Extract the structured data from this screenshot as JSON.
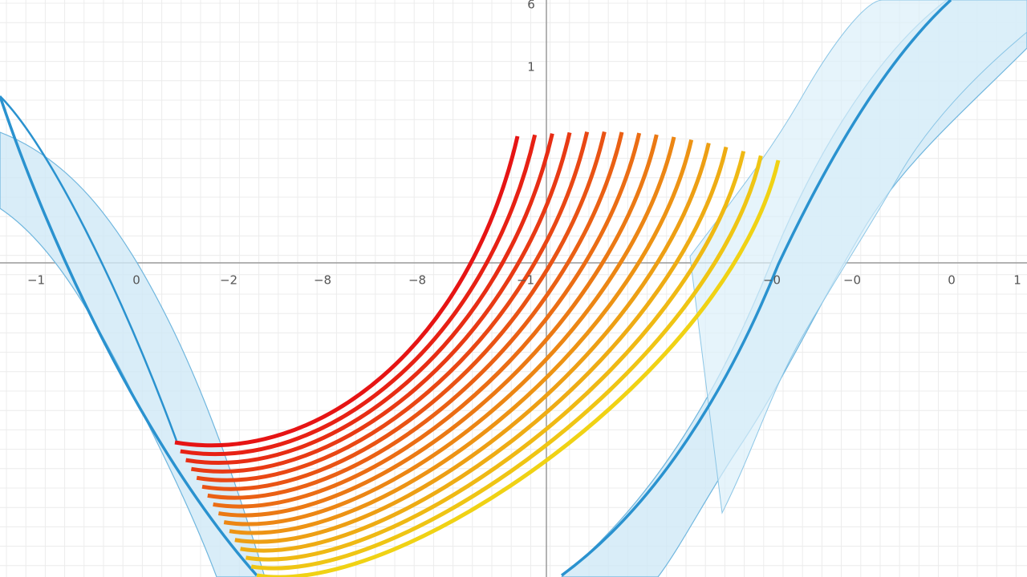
{
  "axes": {
    "x_labels": [
      "−1",
      "0",
      "−2",
      "−8",
      "−8",
      "−1",
      "−0",
      "−0",
      "0",
      "1"
    ],
    "y_labels": [
      "6",
      "1"
    ]
  }
}
